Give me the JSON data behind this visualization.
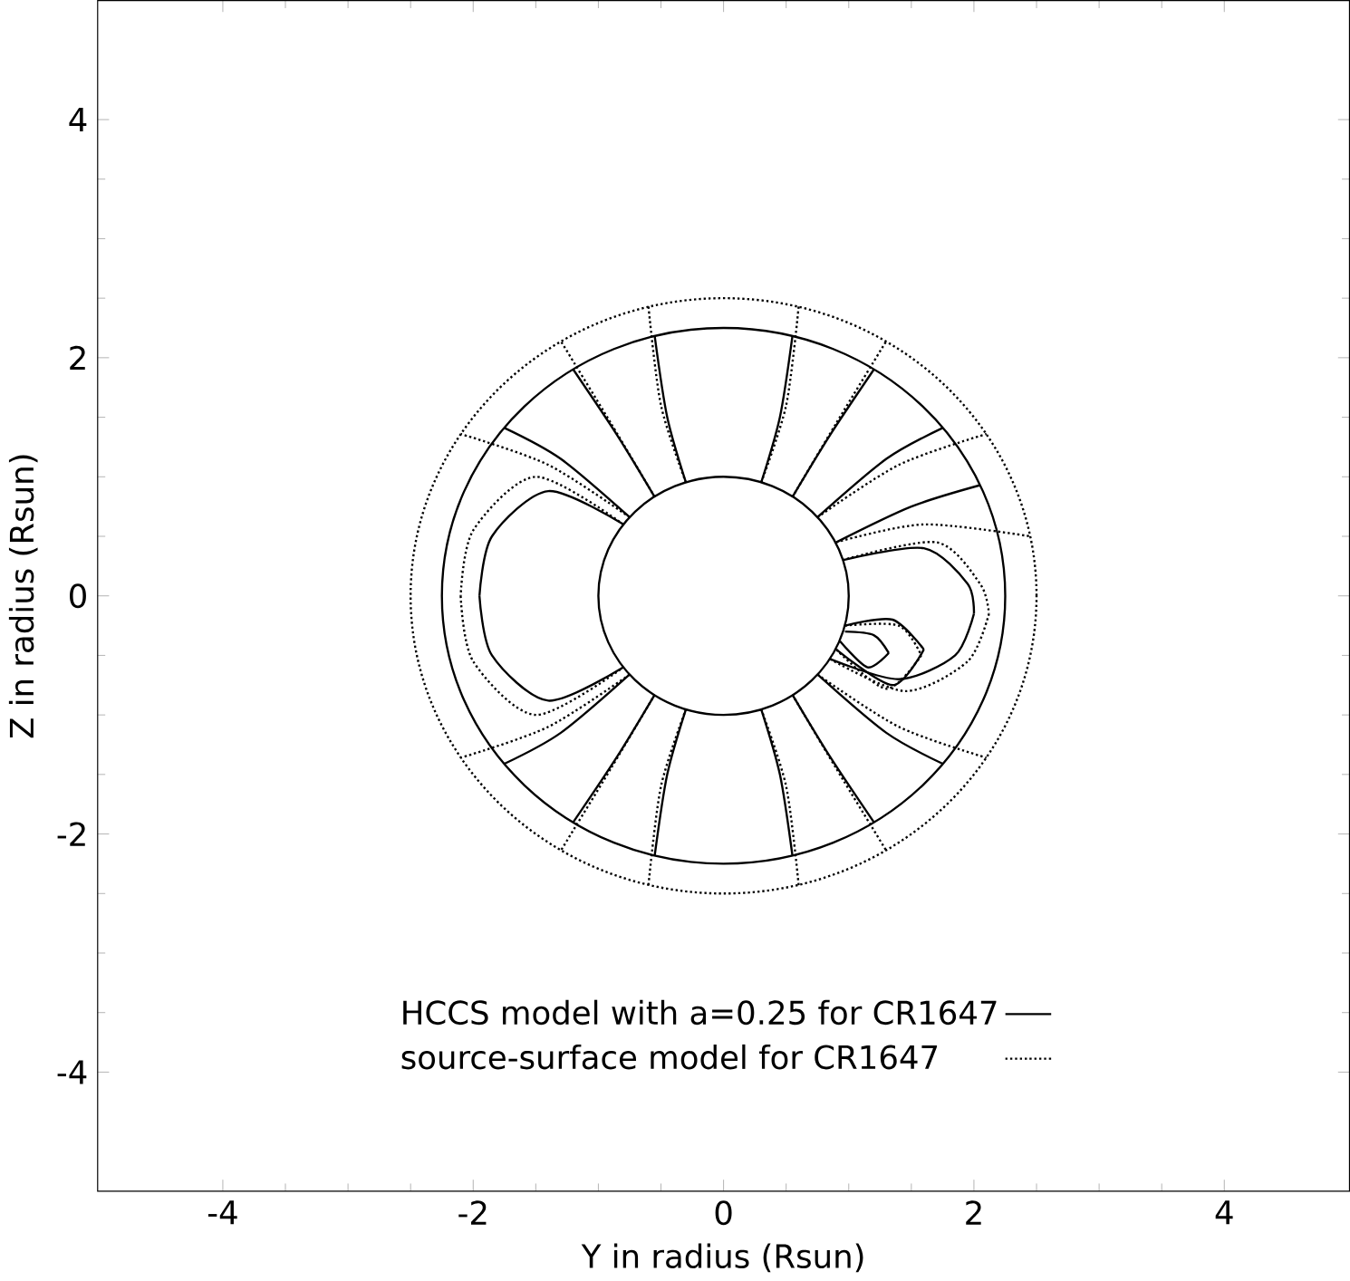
{
  "chart_data": {
    "type": "line",
    "xlabel": "Y in radius (Rsun)",
    "ylabel": "Z in radius (Rsun)",
    "xlim": [
      -5,
      5
    ],
    "ylim": [
      -5,
      5
    ],
    "xticks": [
      -4,
      -2,
      0,
      2,
      4
    ],
    "yticks": [
      -4,
      -2,
      0,
      2,
      4
    ],
    "legend": "bottom",
    "series": [
      {
        "name": "HCCS model with a=0.25 for CR1647",
        "color": "#000000",
        "line_style": "solid",
        "x": [
          0.3,
          0.45,
          0.55
        ],
        "values": [
          0.95,
          1.5,
          2.18
        ]
      },
      {
        "color": "#000000",
        "line_style": "solid",
        "x": [
          0.55,
          0.85,
          1.2
        ],
        "values": [
          0.83,
          1.35,
          1.9
        ]
      },
      {
        "color": "#000000",
        "line_style": "solid",
        "x": [
          0.75,
          1.3,
          1.75
        ],
        "values": [
          0.66,
          1.15,
          1.41
        ]
      },
      {
        "color": "#000000",
        "line_style": "solid",
        "x": [
          0.9,
          1.5,
          2.05
        ],
        "values": [
          0.45,
          0.75,
          0.93
        ]
      },
      {
        "color": "#000000",
        "line_style": "solid",
        "x": [
          -0.3,
          -0.45,
          -0.55
        ],
        "values": [
          0.95,
          1.5,
          2.18
        ]
      },
      {
        "color": "#000000",
        "line_style": "solid",
        "x": [
          -0.55,
          -0.85,
          -1.2
        ],
        "values": [
          0.83,
          1.35,
          1.9
        ]
      },
      {
        "color": "#000000",
        "line_style": "solid",
        "x": [
          -0.75,
          -1.3,
          -1.75
        ],
        "values": [
          0.66,
          1.15,
          1.41
        ]
      },
      {
        "color": "#000000",
        "line_style": "solid",
        "x": [
          0.3,
          0.45,
          0.55
        ],
        "values": [
          -0.95,
          -1.5,
          -2.18
        ]
      },
      {
        "color": "#000000",
        "line_style": "solid",
        "x": [
          0.55,
          0.85,
          1.2
        ],
        "values": [
          -0.83,
          -1.35,
          -1.9
        ]
      },
      {
        "color": "#000000",
        "line_style": "solid",
        "x": [
          0.75,
          1.3,
          1.75
        ],
        "values": [
          -0.66,
          -1.15,
          -1.41
        ]
      },
      {
        "color": "#000000",
        "line_style": "solid",
        "x": [
          -0.3,
          -0.45,
          -0.55
        ],
        "values": [
          -0.95,
          -1.5,
          -2.18
        ]
      },
      {
        "color": "#000000",
        "line_style": "solid",
        "x": [
          -0.55,
          -0.85,
          -1.2
        ],
        "values": [
          -0.83,
          -1.35,
          -1.9
        ]
      },
      {
        "color": "#000000",
        "line_style": "solid",
        "x": [
          -0.75,
          -1.3,
          -1.75
        ],
        "values": [
          -0.66,
          -1.15,
          -1.41
        ]
      },
      {
        "color": "#000000",
        "line_style": "solid",
        "x": [
          -0.8,
          -1.4,
          -1.85,
          -1.95
        ],
        "values": [
          0.6,
          0.88,
          0.5,
          0
        ]
      },
      {
        "color": "#000000",
        "line_style": "solid",
        "x": [
          -1.95,
          -1.85,
          -1.4,
          -0.8
        ],
        "values": [
          0,
          -0.5,
          -0.88,
          -0.6
        ]
      },
      {
        "color": "#000000",
        "line_style": "solid",
        "x": [
          0.95,
          1.6,
          1.95,
          2.0
        ],
        "values": [
          0.3,
          0.4,
          0.1,
          -0.15
        ]
      },
      {
        "color": "#000000",
        "line_style": "solid",
        "x": [
          2.0,
          1.85,
          1.4,
          0.85
        ],
        "values": [
          -0.15,
          -0.5,
          -0.7,
          -0.53
        ]
      },
      {
        "color": "#000000",
        "line_style": "solid",
        "x": [
          0.97,
          1.35,
          1.6
        ],
        "values": [
          -0.25,
          -0.2,
          -0.45
        ]
      },
      {
        "color": "#000000",
        "line_style": "solid",
        "x": [
          1.6,
          1.35,
          0.9
        ],
        "values": [
          -0.45,
          -0.75,
          -0.45
        ]
      },
      {
        "color": "#000000",
        "line_style": "solid",
        "x": [
          0.97,
          1.2,
          1.32
        ],
        "values": [
          -0.3,
          -0.33,
          -0.48
        ]
      },
      {
        "color": "#000000",
        "line_style": "solid",
        "x": [
          1.32,
          1.15,
          0.93
        ],
        "values": [
          -0.48,
          -0.6,
          -0.38
        ]
      },
      {
        "name": "source-surface model for CR1647",
        "color": "#000000",
        "line_style": "dotted",
        "x": [
          0.3,
          0.5,
          0.6
        ],
        "values": [
          0.95,
          1.6,
          2.43
        ]
      },
      {
        "color": "#000000",
        "line_style": "dotted",
        "x": [
          0.55,
          0.9,
          1.3
        ],
        "values": [
          0.83,
          1.45,
          2.14
        ]
      },
      {
        "color": "#000000",
        "line_style": "dotted",
        "x": [
          0.75,
          1.4,
          2.1
        ],
        "values": [
          0.66,
          1.1,
          1.36
        ]
      },
      {
        "color": "#000000",
        "line_style": "dotted",
        "x": [
          0.9,
          1.6,
          2.45
        ],
        "values": [
          0.45,
          0.6,
          0.5
        ]
      },
      {
        "color": "#000000",
        "line_style": "dotted",
        "x": [
          -0.3,
          -0.5,
          -0.6
        ],
        "values": [
          0.95,
          1.6,
          2.43
        ]
      },
      {
        "color": "#000000",
        "line_style": "dotted",
        "x": [
          -0.55,
          -0.9,
          -1.3
        ],
        "values": [
          0.83,
          1.45,
          2.14
        ]
      },
      {
        "color": "#000000",
        "line_style": "dotted",
        "x": [
          -0.75,
          -1.4,
          -2.1
        ],
        "values": [
          0.66,
          1.1,
          1.36
        ]
      },
      {
        "color": "#000000",
        "line_style": "dotted",
        "x": [
          0.3,
          0.5,
          0.6
        ],
        "values": [
          -0.95,
          -1.6,
          -2.43
        ]
      },
      {
        "color": "#000000",
        "line_style": "dotted",
        "x": [
          0.55,
          0.9,
          1.3
        ],
        "values": [
          -0.83,
          -1.45,
          -2.14
        ]
      },
      {
        "color": "#000000",
        "line_style": "dotted",
        "x": [
          0.75,
          1.4,
          2.1
        ],
        "values": [
          -0.66,
          -1.1,
          -1.36
        ]
      },
      {
        "color": "#000000",
        "line_style": "dotted",
        "x": [
          -0.3,
          -0.5,
          -0.6
        ],
        "values": [
          -0.95,
          -1.6,
          -2.43
        ]
      },
      {
        "color": "#000000",
        "line_style": "dotted",
        "x": [
          -0.55,
          -0.9,
          -1.3
        ],
        "values": [
          -0.83,
          -1.45,
          -2.14
        ]
      },
      {
        "color": "#000000",
        "line_style": "dotted",
        "x": [
          -0.75,
          -1.4,
          -2.1
        ],
        "values": [
          -0.66,
          -1.1,
          -1.36
        ]
      },
      {
        "color": "#000000",
        "line_style": "dotted",
        "x": [
          -0.8,
          -1.5,
          -2.0,
          -2.1
        ],
        "values": [
          0.6,
          1.0,
          0.55,
          0
        ]
      },
      {
        "color": "#000000",
        "line_style": "dotted",
        "x": [
          -2.1,
          -2.0,
          -1.5,
          -0.8
        ],
        "values": [
          0,
          -0.55,
          -1.0,
          -0.6
        ]
      },
      {
        "color": "#000000",
        "line_style": "dotted",
        "x": [
          0.95,
          1.7,
          2.05,
          2.12
        ],
        "values": [
          0.3,
          0.45,
          0.1,
          -0.15
        ]
      },
      {
        "color": "#000000",
        "line_style": "dotted",
        "x": [
          2.12,
          1.95,
          1.45,
          0.85
        ],
        "values": [
          -0.15,
          -0.55,
          -0.8,
          -0.53
        ]
      },
      {
        "color": "#000000",
        "line_style": "dotted",
        "x": [
          0.97,
          1.4,
          1.58
        ],
        "values": [
          -0.25,
          -0.25,
          -0.5
        ]
      },
      {
        "color": "#000000",
        "line_style": "dotted",
        "x": [
          1.58,
          1.3,
          0.9
        ],
        "values": [
          -0.5,
          -0.78,
          -0.45
        ]
      }
    ]
  }
}
